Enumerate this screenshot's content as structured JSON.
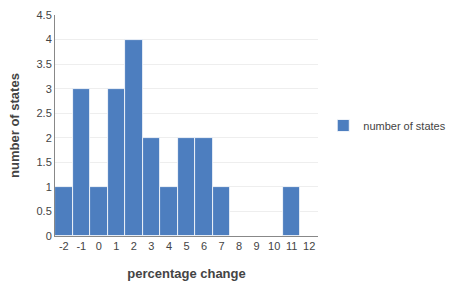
{
  "chart_data": {
    "type": "bar",
    "x": [
      -2,
      -1,
      0,
      1,
      2,
      3,
      4,
      5,
      6,
      7,
      8,
      9,
      10,
      11,
      12
    ],
    "series": [
      {
        "name": "number of states",
        "color": "#4d7ebf",
        "values": [
          1,
          3,
          1,
          3,
          4,
          2,
          1,
          2,
          2,
          1,
          0,
          0,
          0,
          1,
          0
        ]
      }
    ],
    "xlabel": "percentage change",
    "ylabel": "number of states",
    "xlim": [
      -2.5,
      12.5
    ],
    "xticks": [
      -2,
      -1,
      0,
      1,
      2,
      3,
      4,
      5,
      6,
      7,
      8,
      9,
      10,
      11,
      12
    ],
    "ylim": [
      0,
      4.5
    ],
    "yticks": [
      0,
      0.5,
      1,
      1.5,
      2,
      2.5,
      3,
      3.5,
      4,
      4.5
    ],
    "grid": true,
    "legend": "right"
  }
}
